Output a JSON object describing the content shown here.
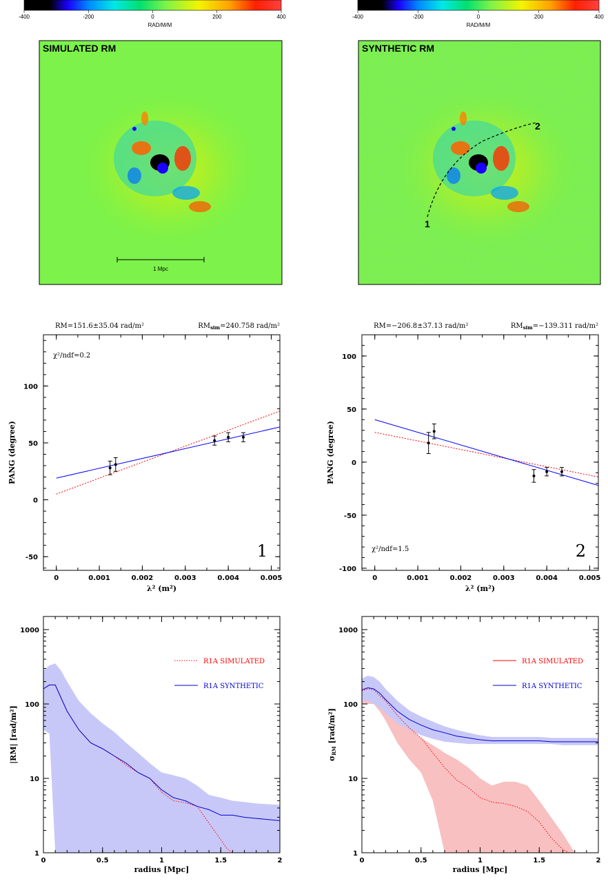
{
  "colorbar": {
    "ticks": [
      "-400",
      "-200",
      "0",
      "200",
      "400"
    ],
    "unit_label": "RAD/M/M"
  },
  "maps": {
    "left_label": "SIMULATED RM",
    "right_label": "SYNTHETIC RM",
    "scale_bar_label": "1 Mpc",
    "path_point_1": "1",
    "path_point_2": "2"
  },
  "colors": {
    "fit_blue": "#0000ff",
    "sim_red": "#ff0000",
    "band_blue": "#c8c8f8",
    "band_red": "#f8c0c0",
    "map_green": "#7cf24a"
  },
  "chart_data": [
    {
      "type": "scatter",
      "panel": "1",
      "header_left": "RM=151.6±35.04 rad/m²",
      "header_right_prefix": "RM",
      "header_right_sub": "sim",
      "header_right_value": "=240.758 rad/m²",
      "annotation": "χ²/ndf=0.2",
      "panel_number": "1",
      "xlabel": "λ² (m²)",
      "ylabel": "PANG (degree)",
      "xlim": [
        -0.0003,
        0.0052
      ],
      "ylim": [
        -62,
        145
      ],
      "xticks": [
        "0",
        "0.001",
        "0.002",
        "0.003",
        "0.004",
        "0.005"
      ],
      "xtick_values": [
        0,
        0.001,
        0.002,
        0.003,
        0.004,
        0.005
      ],
      "yticks": [
        "-50",
        "0",
        "50",
        "100"
      ],
      "ytick_values": [
        -50,
        0,
        50,
        100
      ],
      "points": [
        {
          "x": 0.00125,
          "y": 28,
          "err": 6
        },
        {
          "x": 0.00138,
          "y": 31,
          "err": 6
        },
        {
          "x": 0.00368,
          "y": 52,
          "err": 4
        },
        {
          "x": 0.004,
          "y": 55,
          "err": 4
        },
        {
          "x": 0.00435,
          "y": 55,
          "err": 4
        }
      ],
      "fit_line": {
        "x": [
          0,
          0.0052
        ],
        "y": [
          19,
          64
        ]
      },
      "sim_line": {
        "x": [
          0,
          0.0052
        ],
        "y": [
          5,
          78
        ]
      }
    },
    {
      "type": "scatter",
      "panel": "2",
      "header_left": "RM=−206.8±37.13 rad/m²",
      "header_right_prefix": "RM",
      "header_right_sub": "sim",
      "header_right_value": "=−139.311 rad/m²",
      "annotation": "χ²/ndf=1.5",
      "panel_number": "2",
      "xlabel": "λ² (m²)",
      "ylabel": "PANG (degree)",
      "xlim": [
        -0.0003,
        0.0052
      ],
      "ylim": [
        -102,
        120
      ],
      "xticks": [
        "0",
        "0.001",
        "0.002",
        "0.003",
        "0.004",
        "0.005"
      ],
      "xtick_values": [
        0,
        0.001,
        0.002,
        0.003,
        0.004,
        0.005
      ],
      "yticks": [
        "-100",
        "-50",
        "0",
        "50",
        "100"
      ],
      "ytick_values": [
        -100,
        -50,
        0,
        50,
        100
      ],
      "points": [
        {
          "x": 0.00125,
          "y": 18,
          "err": 10
        },
        {
          "x": 0.00138,
          "y": 29,
          "err": 7
        },
        {
          "x": 0.0037,
          "y": -13,
          "err": 6
        },
        {
          "x": 0.004,
          "y": -9,
          "err": 4
        },
        {
          "x": 0.00435,
          "y": -9,
          "err": 4
        }
      ],
      "fit_line": {
        "x": [
          0,
          0.0052
        ],
        "y": [
          40,
          -22
        ]
      },
      "sim_line": {
        "x": [
          0,
          0.0052
        ],
        "y": [
          28,
          -14
        ]
      }
    },
    {
      "type": "line",
      "panel": "3",
      "log_y": true,
      "xlabel": "radius [Mpc]",
      "ylabel": "|RM| [rad/m²]",
      "xlim": [
        0,
        2
      ],
      "ylim": [
        1,
        1500
      ],
      "xticks": [
        "0",
        "0.5",
        "1",
        "1.5",
        "2"
      ],
      "xtick_values": [
        0,
        0.5,
        1,
        1.5,
        2
      ],
      "yticks": [
        "1",
        "10",
        "100",
        "1000"
      ],
      "ytick_values": [
        1,
        10,
        100,
        1000
      ],
      "legend": [
        {
          "label": "R1A SIMULATED",
          "style": "dotted",
          "color": "#ff0000"
        },
        {
          "label": "R1A SYNTHETIC",
          "style": "solid",
          "color": "#0000cc"
        }
      ],
      "series": [
        {
          "name": "R1A SIMULATED",
          "x": [
            0,
            0.05,
            0.1,
            0.15,
            0.2,
            0.3,
            0.4,
            0.5,
            0.6,
            0.7,
            0.8,
            0.9,
            0.95,
            1.0,
            1.1,
            1.2,
            1.3,
            1.4,
            1.5,
            1.55,
            1.6
          ],
          "y": [
            160,
            180,
            180,
            120,
            80,
            45,
            30,
            25,
            20,
            15,
            12,
            10,
            8,
            6.5,
            5,
            4.7,
            4.2,
            2.5,
            1.5,
            1.15,
            1.0
          ]
        },
        {
          "name": "R1A SYNTHETIC",
          "x": [
            0,
            0.05,
            0.1,
            0.15,
            0.2,
            0.3,
            0.4,
            0.5,
            0.6,
            0.7,
            0.8,
            0.9,
            1.0,
            1.1,
            1.2,
            1.3,
            1.4,
            1.5,
            1.6,
            1.7,
            1.8,
            1.9,
            2.0
          ],
          "y": [
            160,
            180,
            180,
            120,
            80,
            45,
            30,
            25,
            20,
            16,
            12,
            10,
            7,
            5.5,
            5.0,
            4.2,
            3.8,
            3.2,
            3.2,
            3.0,
            2.9,
            2.8,
            2.7
          ]
        }
      ],
      "band_synthetic": {
        "x": [
          0,
          0.05,
          0.1,
          0.15,
          0.2,
          0.3,
          0.4,
          0.5,
          0.6,
          0.7,
          0.8,
          0.9,
          1.0,
          1.1,
          1.2,
          1.3,
          1.4,
          1.5,
          1.6,
          1.7,
          1.8,
          1.9,
          2.0
        ],
        "upper": [
          280,
          330,
          350,
          280,
          200,
          110,
          75,
          55,
          42,
          30,
          22,
          16,
          12,
          11,
          10,
          8,
          6,
          5.5,
          5,
          4.8,
          4.6,
          4.5,
          4.4
        ],
        "lower": [
          45,
          40,
          1,
          1,
          1,
          1,
          1,
          1,
          1,
          1,
          1,
          1,
          1,
          1,
          1,
          1,
          1,
          1,
          1,
          1,
          1,
          1,
          1
        ]
      }
    },
    {
      "type": "line",
      "panel": "4",
      "log_y": true,
      "xlabel": "radius [Mpc]",
      "ylabel": "σRM [rad/m²]",
      "xlim": [
        0,
        2
      ],
      "ylim": [
        1,
        1500
      ],
      "xticks": [
        "0",
        "0.5",
        "1",
        "1.5",
        "2"
      ],
      "xtick_values": [
        0,
        0.5,
        1,
        1.5,
        2
      ],
      "yticks": [
        "1",
        "10",
        "100",
        "1000"
      ],
      "ytick_values": [
        1,
        10,
        100,
        1000
      ],
      "legend": [
        {
          "label": "R1A SIMULATED",
          "style": "solid",
          "color": "#ff0000"
        },
        {
          "label": "R1A SYNTHETIC",
          "style": "solid",
          "color": "#0000cc"
        }
      ],
      "series": [
        {
          "name": "R1A SIMULATED",
          "x": [
            0,
            0.05,
            0.1,
            0.15,
            0.2,
            0.3,
            0.4,
            0.5,
            0.6,
            0.7,
            0.8,
            0.9,
            1.0,
            1.1,
            1.2,
            1.3,
            1.4,
            1.5,
            1.6,
            1.7,
            1.75
          ],
          "y": [
            150,
            160,
            155,
            130,
            110,
            70,
            48,
            35,
            22,
            14,
            9.5,
            7.5,
            5.5,
            4.8,
            4.6,
            4.2,
            3.6,
            2.6,
            1.6,
            1.1,
            1.0
          ]
        },
        {
          "name": "R1A SYNTHETIC",
          "x": [
            0,
            0.05,
            0.1,
            0.15,
            0.2,
            0.3,
            0.4,
            0.5,
            0.6,
            0.7,
            0.8,
            0.9,
            1.0,
            1.1,
            1.2,
            1.3,
            1.4,
            1.5,
            1.6,
            1.7,
            1.8,
            1.9,
            2.0
          ],
          "y": [
            155,
            165,
            160,
            140,
            115,
            80,
            62,
            52,
            45,
            41,
            37,
            35,
            33,
            32,
            32,
            32,
            32,
            32,
            31,
            31,
            31,
            31,
            31
          ]
        }
      ],
      "band_synthetic": {
        "x": [
          0,
          0.05,
          0.1,
          0.15,
          0.2,
          0.3,
          0.4,
          0.5,
          0.6,
          0.7,
          0.8,
          0.9,
          1.0,
          1.1,
          1.2,
          1.3,
          1.4,
          1.5,
          1.6,
          1.7,
          1.8,
          1.9,
          2.0
        ],
        "upper": [
          220,
          240,
          230,
          200,
          160,
          110,
          82,
          68,
          58,
          50,
          45,
          41,
          38,
          36,
          36,
          36,
          36,
          36,
          35,
          35,
          35,
          35,
          35
        ],
        "lower": [
          110,
          110,
          100,
          90,
          75,
          55,
          45,
          38,
          34,
          31,
          30,
          29,
          29,
          29,
          29,
          29,
          29,
          29,
          29,
          28,
          28,
          28,
          28
        ]
      },
      "band_simulated": {
        "x": [
          0,
          0.05,
          0.1,
          0.15,
          0.2,
          0.3,
          0.4,
          0.5,
          0.6,
          0.7,
          0.8,
          0.9,
          1.0,
          1.1,
          1.2,
          1.3,
          1.4,
          1.5,
          1.6,
          1.7,
          1.8
        ],
        "upper": [
          150,
          160,
          155,
          130,
          110,
          70,
          48,
          35,
          28,
          22,
          18,
          14,
          10,
          8,
          9,
          9,
          8,
          5,
          3,
          1.8,
          1.0
        ],
        "lower": [
          100,
          100,
          100,
          80,
          60,
          30,
          18,
          12,
          5,
          1,
          1,
          1,
          1,
          1,
          1,
          1,
          1,
          1,
          1,
          1,
          1
        ]
      }
    }
  ]
}
